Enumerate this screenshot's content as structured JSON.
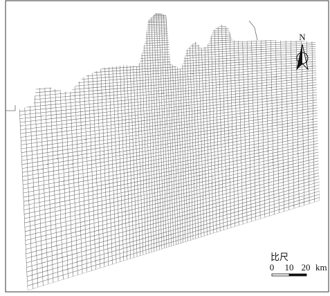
{
  "north_label": "N",
  "scale_bar": {
    "title": "比尺",
    "ticks": [
      "0",
      "10",
      "20"
    ],
    "unit": "km"
  }
}
